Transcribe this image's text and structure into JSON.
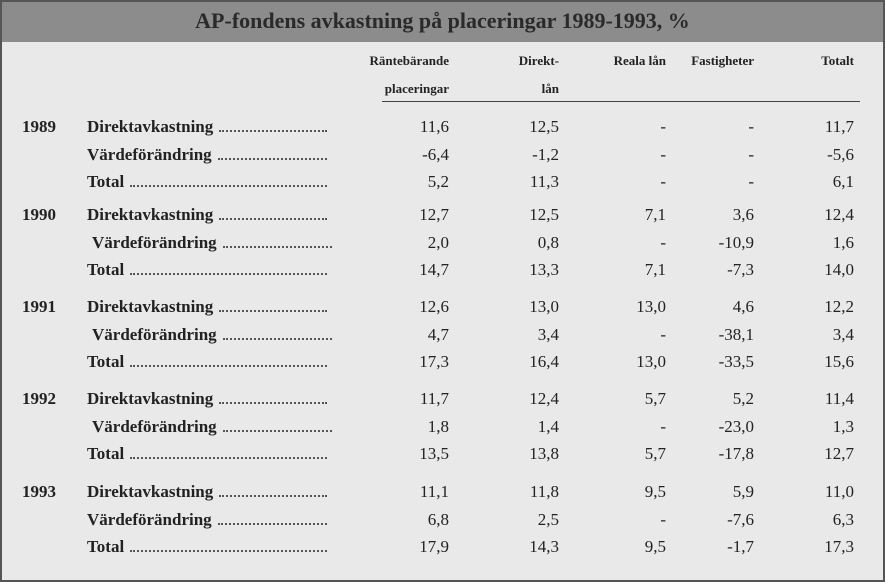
{
  "title": "AP-fondens avkastning på placeringar 1989-1993, %",
  "columns": [
    [
      "Räntebärande",
      "placeringar"
    ],
    [
      "Direkt-",
      "lån"
    ],
    [
      "Reala lån"
    ],
    [
      "Fastigheter"
    ],
    [
      "Totalt"
    ]
  ],
  "groups": [
    {
      "year": "1989",
      "rows": [
        {
          "label": "Direktavkastning",
          "values": [
            "11,6",
            "12,5",
            "-",
            "-",
            "11,7"
          ]
        },
        {
          "label": "Värdeförändring",
          "values": [
            "-6,4",
            "-1,2",
            "-",
            "-",
            "-5,6"
          ]
        },
        {
          "label": "Total",
          "values": [
            "5,2",
            "11,3",
            "-",
            "-",
            "6,1"
          ]
        }
      ]
    },
    {
      "year": "1990",
      "rows": [
        {
          "label": "Direktavkastning",
          "values": [
            "12,7",
            "12,5",
            "7,1",
            "3,6",
            "12,4"
          ]
        },
        {
          "label": "Värdeförändring",
          "values": [
            "2,0",
            "0,8",
            "-",
            "-10,9",
            "1,6"
          ]
        },
        {
          "label": "Total",
          "values": [
            "14,7",
            "13,3",
            "7,1",
            "-7,3",
            "14,0"
          ]
        }
      ]
    },
    {
      "year": "1991",
      "rows": [
        {
          "label": "Direktavkastning",
          "values": [
            "12,6",
            "13,0",
            "13,0",
            "4,6",
            "12,2"
          ]
        },
        {
          "label": "Värdeförändring",
          "values": [
            "4,7",
            "3,4",
            "-",
            "-38,1",
            "3,4"
          ]
        },
        {
          "label": "Total",
          "values": [
            "17,3",
            "16,4",
            "13,0",
            "-33,5",
            "15,6"
          ]
        }
      ]
    },
    {
      "year": "1992",
      "rows": [
        {
          "label": "Direktavkastning",
          "values": [
            "11,7",
            "12,4",
            "5,7",
            "5,2",
            "11,4"
          ]
        },
        {
          "label": "Värdeförändring",
          "values": [
            "1,8",
            "1,4",
            "-",
            "-23,0",
            "1,3"
          ]
        },
        {
          "label": "Total",
          "values": [
            "13,5",
            "13,8",
            "5,7",
            "-17,8",
            "12,7"
          ]
        }
      ]
    },
    {
      "year": "1993",
      "rows": [
        {
          "label": "Direktavkastning",
          "values": [
            "11,1",
            "11,8",
            "9,5",
            "5,9",
            "11,0"
          ]
        },
        {
          "label": "Värdeförändring",
          "values": [
            "6,8",
            "2,5",
            "-",
            "-7,6",
            "6,3"
          ]
        },
        {
          "label": "Total",
          "values": [
            "17,9",
            "14,3",
            "9,5",
            "-1,7",
            "17,3"
          ]
        }
      ]
    }
  ]
}
